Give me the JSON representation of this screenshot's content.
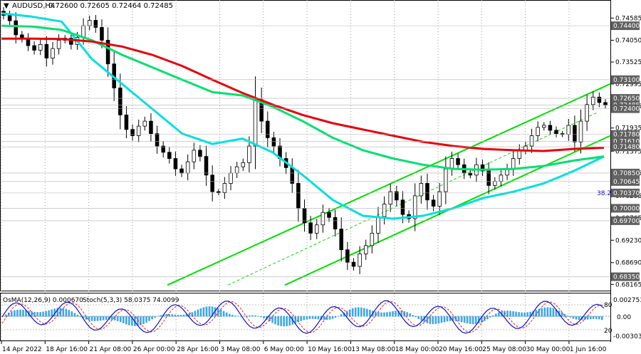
{
  "window": {
    "title": "AUDUSD,H4",
    "ohlc": "0.72600 0.72605 0.72464 0.72485",
    "collapse_glyph": "▼"
  },
  "oscillator": {
    "label": "OsMA(12,26,9) 0.000670",
    "stoch_label": "Stoch(5,3,3) 58.0375 74.0099",
    "axis": {
      "top": "0.002753",
      "bottom": "-0.003034",
      "zero": "0.00",
      "level_high": "80",
      "level_low": "20"
    }
  },
  "fib_label": "38.2",
  "colors": {
    "candle": "#000000",
    "ema_red": "#e8000b",
    "ema_green": "#00e070",
    "ema_cyan": "#00e0e0",
    "channel": "#00e000",
    "tag_bg": "#606060",
    "histogram": "#3ea6e6",
    "stoch_main": "#1010c8",
    "stoch_signal": "#e02020"
  },
  "chart_data": {
    "type": "candlestick",
    "symbol": "AUDUSD",
    "timeframe": "H4",
    "xlabels": [
      "14 Apr 2022",
      "18 Apr 16:00",
      "21 Apr 08:00",
      "26 Apr 00:00",
      "28 Apr 16:00",
      "3 May 08:00",
      "6 May 00:00",
      "10 May 16:00",
      "13 May 08:00",
      "18 May 00:00",
      "20 May 16:00",
      "25 May 08:00",
      "30 May 00:00",
      "1 Jun 16:00"
    ],
    "yticks": [
      "0.74585",
      "0.74050",
      "0.73525",
      "0.72995",
      "0.72465",
      "0.71935",
      "0.71375",
      "0.70845",
      "0.70295",
      "0.69765",
      "0.69230",
      "0.68690",
      "0.68165"
    ],
    "price_tags": [
      "0.74400",
      "0.73100",
      "0.72650",
      "0.72485",
      "0.72400",
      "0.71780",
      "0.71610",
      "0.71480",
      "0.70850",
      "0.70645",
      "0.70370",
      "0.70000",
      "0.69700",
      "0.68350"
    ],
    "ylim": [
      0.6805,
      0.7478
    ],
    "close_series": [
      0.7465,
      0.7452,
      0.7418,
      0.7409,
      0.7392,
      0.7381,
      0.7395,
      0.7362,
      0.7385,
      0.7405,
      0.741,
      0.7395,
      0.7412,
      0.744,
      0.7453,
      0.7436,
      0.7405,
      0.7348,
      0.729,
      0.7225,
      0.719,
      0.7175,
      0.7198,
      0.721,
      0.718,
      0.715,
      0.7135,
      0.712,
      0.7095,
      0.7085,
      0.7112,
      0.714,
      0.7125,
      0.708,
      0.704,
      0.7038,
      0.706,
      0.7085,
      0.71,
      0.711,
      0.715,
      0.7262,
      0.721,
      0.717,
      0.715,
      0.712,
      0.7098,
      0.706,
      0.7,
      0.6965,
      0.694,
      0.696,
      0.699,
      0.6978,
      0.695,
      0.69,
      0.687,
      0.686,
      0.689,
      0.691,
      0.694,
      0.698,
      0.701,
      0.704,
      0.702,
      0.6985,
      0.6975,
      0.703,
      0.706,
      0.702,
      0.7005,
      0.704,
      0.7095,
      0.712,
      0.7105,
      0.7085,
      0.708,
      0.7105,
      0.709,
      0.7055,
      0.7065,
      0.708,
      0.7095,
      0.712,
      0.714,
      0.715,
      0.7175,
      0.7195,
      0.72,
      0.7188,
      0.718,
      0.7178,
      0.72,
      0.716,
      0.721,
      0.725,
      0.7268,
      0.7255,
      0.7249
    ],
    "ema_red": [
      0.7409,
      0.7409,
      0.7408,
      0.7402,
      0.739,
      0.737,
      0.7343,
      0.731,
      0.7278,
      0.725,
      0.7225,
      0.7205,
      0.719,
      0.7175,
      0.716,
      0.715,
      0.7143,
      0.714,
      0.7138,
      0.7143,
      0.7146
    ],
    "ema_green": [
      0.744,
      0.7438,
      0.743,
      0.7405,
      0.737,
      0.734,
      0.731,
      0.728,
      0.7272,
      0.7245,
      0.721,
      0.717,
      0.714,
      0.712,
      0.7105,
      0.7095,
      0.7093,
      0.7095,
      0.7102,
      0.7115,
      0.7125
    ],
    "ema_cyan": [
      0.747,
      0.7462,
      0.745,
      0.736,
      0.73,
      0.724,
      0.718,
      0.7155,
      0.7168,
      0.7135,
      0.708,
      0.702,
      0.6982,
      0.6975,
      0.6982,
      0.7,
      0.7025,
      0.704,
      0.706,
      0.709,
      0.7125
    ]
  }
}
